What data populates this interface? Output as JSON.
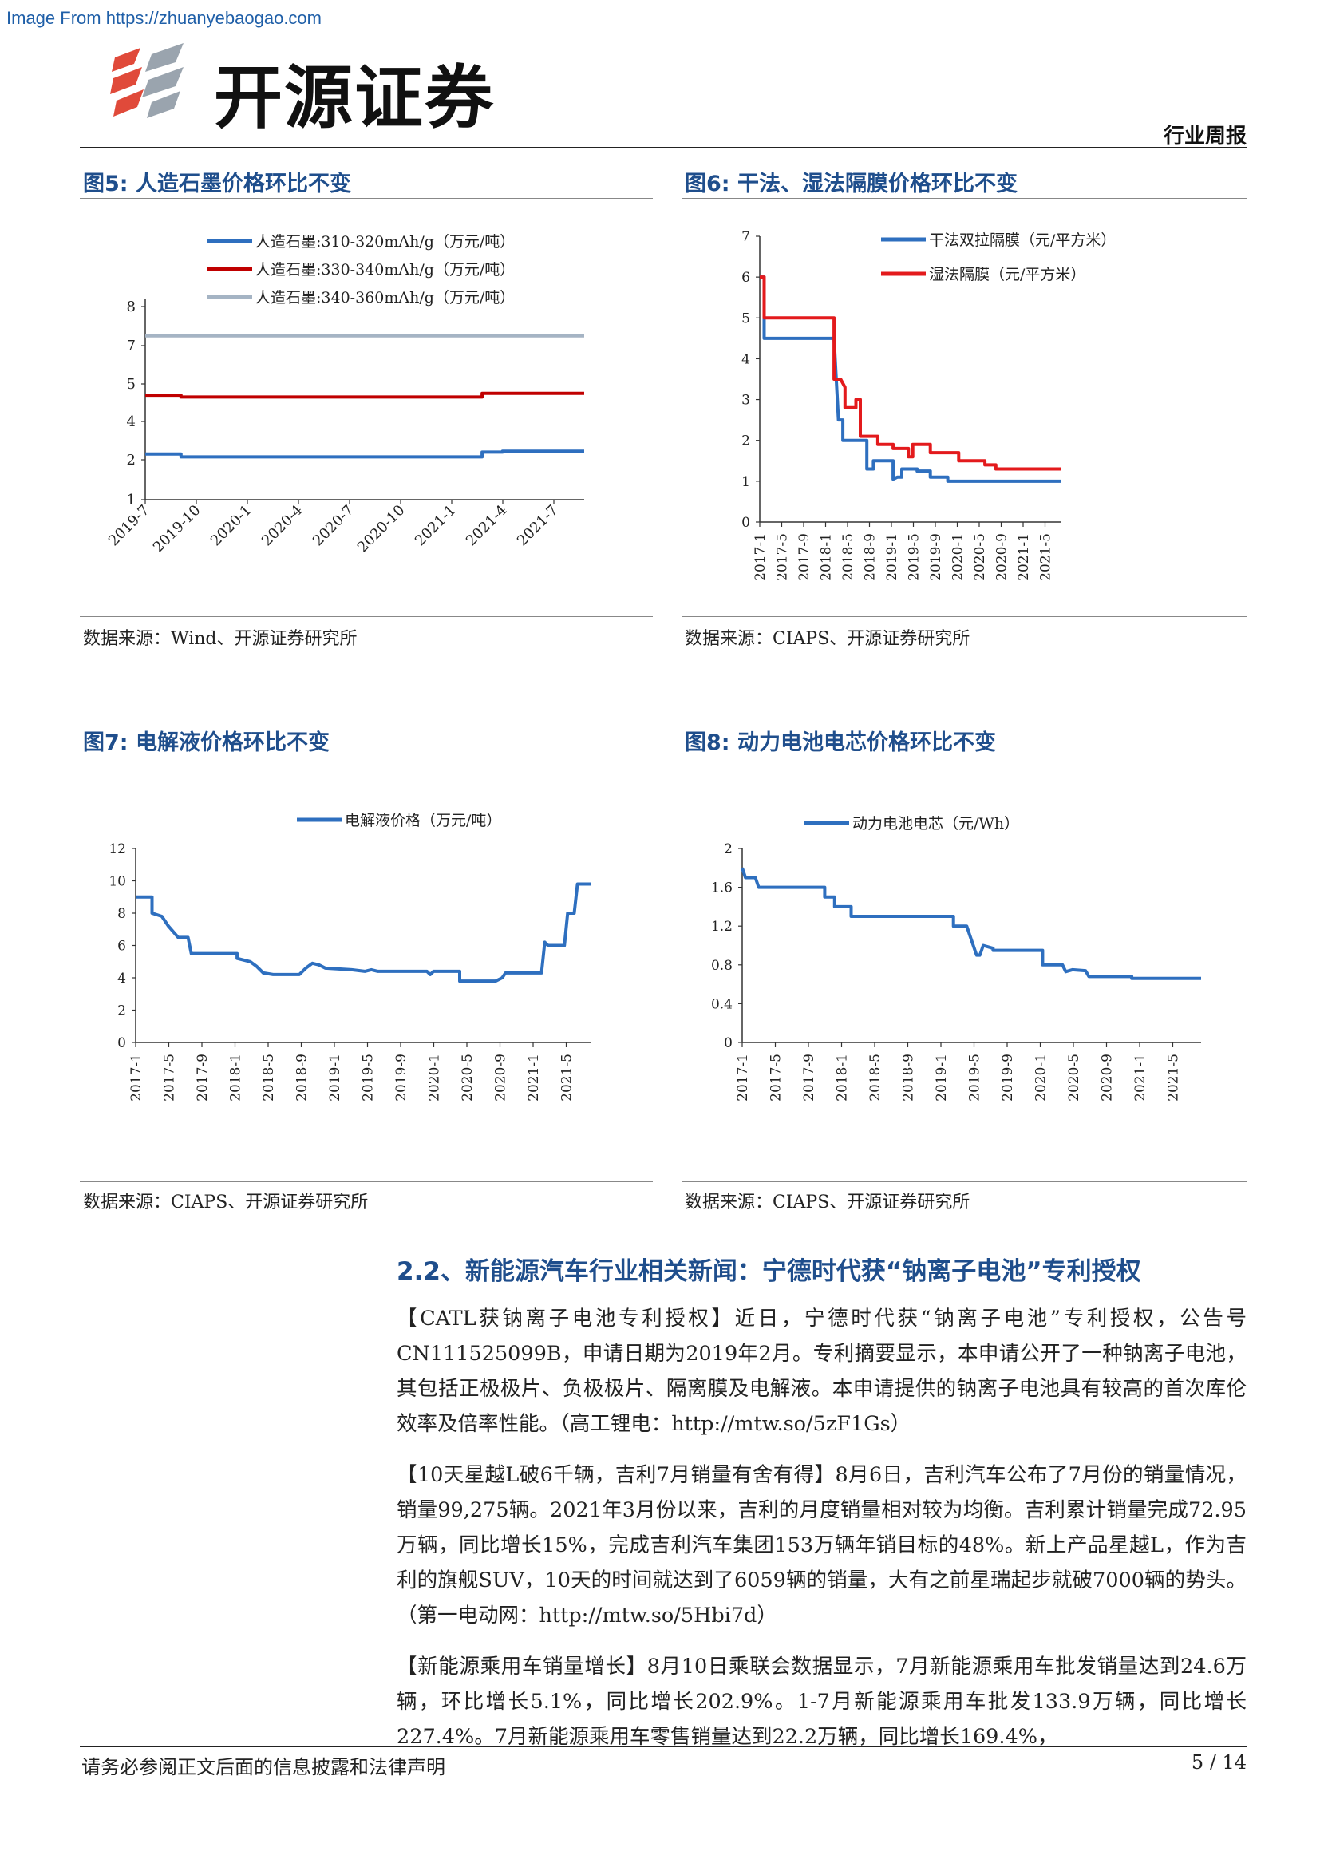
{
  "header": {
    "watermark": "Image From https://zhuanyebaogao.com",
    "brand": "开源证券",
    "report_type": "行业周报"
  },
  "figures": [
    {
      "title": "图5: 人造石墨价格环比不变",
      "source": "数据来源：Wind、开源证券研究所",
      "chart_data": {
        "type": "line",
        "x": [
          "2019-7",
          "2019-10",
          "2020-1",
          "2020-4",
          "2020-7",
          "2020-10",
          "2021-1",
          "2021-4",
          "2021-7"
        ],
        "xticks": [
          "2019-7",
          "2019-10",
          "2020-1",
          "2020-4",
          "2020-7",
          "2020-10",
          "2021-1",
          "2021-4",
          "2021-7"
        ],
        "yticks": [
          "1",
          "2",
          "4",
          "5",
          "7",
          "8"
        ],
        "series": [
          {
            "name": "人造石墨:310-320mAh/g（万元/吨）",
            "color": "#2e6fbf",
            "points": [
              [
                0,
                2.3
              ],
              [
                0.35,
                2.3
              ],
              [
                0.35,
                2.15
              ],
              [
                3.3,
                2.15
              ],
              [
                3.3,
                2.4
              ],
              [
                3.5,
                2.4
              ],
              [
                3.5,
                2.45
              ],
              [
                4.3,
                2.45
              ]
            ]
          },
          {
            "name": "人造石墨:330-340mAh/g（万元/吨）",
            "color": "#c00000",
            "points": [
              [
                0,
                4.7
              ],
              [
                0.35,
                4.7
              ],
              [
                0.35,
                4.65
              ],
              [
                3.3,
                4.65
              ],
              [
                3.3,
                4.75
              ],
              [
                4.3,
                4.75
              ]
            ]
          },
          {
            "name": "人造石墨:340-360mAh/g（万元/吨）",
            "color": "#a5b4c4",
            "points": [
              [
                0,
                7.25
              ],
              [
                4.3,
                7.25
              ]
            ]
          }
        ]
      }
    },
    {
      "title": "图6: 干法、湿法隔膜价格环比不变",
      "source": "数据来源：CIAPS、开源证券研究所",
      "chart_data": {
        "type": "line",
        "xticks": [
          "2017-1",
          "2017-5",
          "2017-9",
          "2018-1",
          "2018-5",
          "2018-9",
          "2019-1",
          "2019-5",
          "2019-9",
          "2020-1",
          "2020-5",
          "2020-9",
          "2021-1",
          "2021-5"
        ],
        "yticks": [
          "0",
          "1",
          "2",
          "3",
          "4",
          "5",
          "6",
          "7"
        ],
        "series": [
          {
            "name": "干法双拉隔膜（元/平方米）",
            "color": "#2e6fbf",
            "points": [
              [
                0,
                6
              ],
              [
                0.2,
                6
              ],
              [
                0.2,
                4.5
              ],
              [
                3.4,
                4.5
              ],
              [
                3.6,
                2.5
              ],
              [
                3.8,
                2.5
              ],
              [
                3.8,
                2
              ],
              [
                4.9,
                2
              ],
              [
                4.9,
                1.3
              ],
              [
                5.2,
                1.3
              ],
              [
                5.2,
                1.5
              ],
              [
                6.1,
                1.5
              ],
              [
                6.1,
                1.05
              ],
              [
                6.3,
                1.1
              ],
              [
                6.5,
                1.1
              ],
              [
                6.5,
                1.3
              ],
              [
                7.2,
                1.3
              ],
              [
                7.2,
                1.25
              ],
              [
                7.8,
                1.25
              ],
              [
                7.8,
                1.1
              ],
              [
                8.6,
                1.1
              ],
              [
                8.6,
                1
              ],
              [
                13.8,
                1
              ]
            ]
          },
          {
            "name": "湿法隔膜（元/平方米）",
            "color": "#e31a1c",
            "points": [
              [
                0,
                6
              ],
              [
                0.2,
                6
              ],
              [
                0.2,
                5
              ],
              [
                3.4,
                5
              ],
              [
                3.4,
                3.5
              ],
              [
                3.7,
                3.5
              ],
              [
                3.9,
                3.3
              ],
              [
                3.9,
                2.8
              ],
              [
                4.4,
                2.8
              ],
              [
                4.4,
                3
              ],
              [
                4.6,
                3
              ],
              [
                4.6,
                2.1
              ],
              [
                5.4,
                2.1
              ],
              [
                5.4,
                1.9
              ],
              [
                6.1,
                1.9
              ],
              [
                6.1,
                1.8
              ],
              [
                6.8,
                1.8
              ],
              [
                6.8,
                1.6
              ],
              [
                7,
                1.6
              ],
              [
                7,
                1.9
              ],
              [
                7.8,
                1.9
              ],
              [
                7.8,
                1.7
              ],
              [
                9.1,
                1.7
              ],
              [
                9.1,
                1.5
              ],
              [
                10.3,
                1.5
              ],
              [
                10.3,
                1.4
              ],
              [
                10.8,
                1.4
              ],
              [
                10.8,
                1.3
              ],
              [
                13.8,
                1.3
              ]
            ]
          }
        ]
      }
    },
    {
      "title": "图7: 电解液价格环比不变",
      "source": "数据来源：CIAPS、开源证券研究所",
      "chart_data": {
        "type": "line",
        "xticks": [
          "2017-1",
          "2017-5",
          "2017-9",
          "2018-1",
          "2018-5",
          "2018-9",
          "2019-1",
          "2019-5",
          "2019-9",
          "2020-1",
          "2020-5",
          "2020-9",
          "2021-1",
          "2021-5"
        ],
        "yticks": [
          "0",
          "2",
          "4",
          "6",
          "8",
          "10",
          "12"
        ],
        "series": [
          {
            "name": "电解液价格（万元/吨）",
            "color": "#2e6fbf",
            "points": [
              [
                0,
                9
              ],
              [
                0.5,
                9
              ],
              [
                0.5,
                8
              ],
              [
                0.8,
                7.8
              ],
              [
                1.0,
                7.2
              ],
              [
                1.3,
                6.5
              ],
              [
                1.6,
                6.5
              ],
              [
                1.7,
                5.5
              ],
              [
                3.1,
                5.5
              ],
              [
                3.1,
                5.2
              ],
              [
                3.5,
                5.0
              ],
              [
                3.7,
                4.7
              ],
              [
                3.9,
                4.3
              ],
              [
                4.2,
                4.2
              ],
              [
                5.0,
                4.2
              ],
              [
                5.2,
                4.6
              ],
              [
                5.4,
                4.9
              ],
              [
                5.6,
                4.8
              ],
              [
                5.8,
                4.6
              ],
              [
                6.6,
                4.5
              ],
              [
                7.0,
                4.4
              ],
              [
                7.2,
                4.5
              ],
              [
                7.4,
                4.4
              ],
              [
                8.9,
                4.4
              ],
              [
                9.0,
                4.2
              ],
              [
                9.1,
                4.4
              ],
              [
                9.9,
                4.4
              ],
              [
                9.9,
                3.8
              ],
              [
                11.0,
                3.8
              ],
              [
                11.2,
                4
              ],
              [
                11.3,
                4.3
              ],
              [
                12.4,
                4.3
              ],
              [
                12.5,
                6.2
              ],
              [
                12.6,
                6
              ],
              [
                13.1,
                6
              ],
              [
                13.2,
                8
              ],
              [
                13.4,
                8
              ],
              [
                13.5,
                9.8
              ],
              [
                13.9,
                9.8
              ]
            ]
          }
        ]
      }
    },
    {
      "title": "图8: 动力电池电芯价格环比不变",
      "source": "数据来源：CIAPS、开源证券研究所",
      "chart_data": {
        "type": "line",
        "xticks": [
          "2017-1",
          "2017-5",
          "2017-9",
          "2018-1",
          "2018-5",
          "2018-9",
          "2019-1",
          "2019-5",
          "2019-9",
          "2020-1",
          "2020-5",
          "2020-9",
          "2021-1",
          "2021-5"
        ],
        "yticks": [
          "0",
          "0.4",
          "0.8",
          "1.2",
          "1.6",
          "2"
        ],
        "series": [
          {
            "name": "动力电池电芯（元/Wh）",
            "color": "#2e6fbf",
            "points": [
              [
                0,
                1.8
              ],
              [
                0.1,
                1.7
              ],
              [
                0.4,
                1.7
              ],
              [
                0.5,
                1.6
              ],
              [
                2.5,
                1.6
              ],
              [
                2.5,
                1.5
              ],
              [
                2.8,
                1.5
              ],
              [
                2.8,
                1.4
              ],
              [
                3.3,
                1.4
              ],
              [
                3.3,
                1.3
              ],
              [
                6.4,
                1.3
              ],
              [
                6.4,
                1.2
              ],
              [
                6.8,
                1.2
              ],
              [
                6.9,
                1.1
              ],
              [
                7.1,
                0.9
              ],
              [
                7.2,
                0.9
              ],
              [
                7.3,
                1.0
              ],
              [
                7.6,
                0.97
              ],
              [
                7.6,
                0.95
              ],
              [
                9.1,
                0.95
              ],
              [
                9.1,
                0.8
              ],
              [
                9.7,
                0.8
              ],
              [
                9.8,
                0.73
              ],
              [
                10.0,
                0.75
              ],
              [
                10.4,
                0.74
              ],
              [
                10.5,
                0.68
              ],
              [
                11.8,
                0.68
              ],
              [
                11.8,
                0.66
              ],
              [
                13.9,
                0.66
              ]
            ]
          }
        ]
      }
    }
  ],
  "section": {
    "title": "2.2、新能源汽车行业相关新闻：宁德时代获“钠离子电池”专利授权",
    "paragraphs": [
      "【CATL获钠离子电池专利授权】近日，宁德时代获“钠离子电池”专利授权，公告号CN111525099B，申请日期为2019年2月。专利摘要显示，本申请公开了一种钠离子电池，其包括正极极片、负极极片、隔离膜及电解液。本申请提供的钠离子电池具有较高的首次库伦效率及倍率性能。（高工锂电：http://mtw.so/5zF1Gs）",
      "【10天星越L破6千辆，吉利7月销量有舍有得】8月6日，吉利汽车公布了7月份的销量情况，销量99,275辆。2021年3月份以来，吉利的月度销量相对较为均衡。吉利累计销量完成72.95万辆，同比增长15%，完成吉利汽车集团153万辆年销目标的48%。新上产品星越L，作为吉利的旗舰SUV，10天的时间就达到了6059辆的销量，大有之前星瑞起步就破7000辆的势头。（第一电动网：http://mtw.so/5Hbi7d）",
      "【新能源乘用车销量增长】8月10日乘联会数据显示，7月新能源乘用车批发销量达到24.6万辆，环比增长5.1%，同比增长202.9%。1-7月新能源乘用车批发133.9万辆，同比增长227.4%。7月新能源乘用车零售销量达到22.2万辆，同比增长169.4%，"
    ]
  },
  "footer": {
    "disclaimer": "请务必参阅正文后面的信息披露和法律声明",
    "page": "5 / 14"
  }
}
